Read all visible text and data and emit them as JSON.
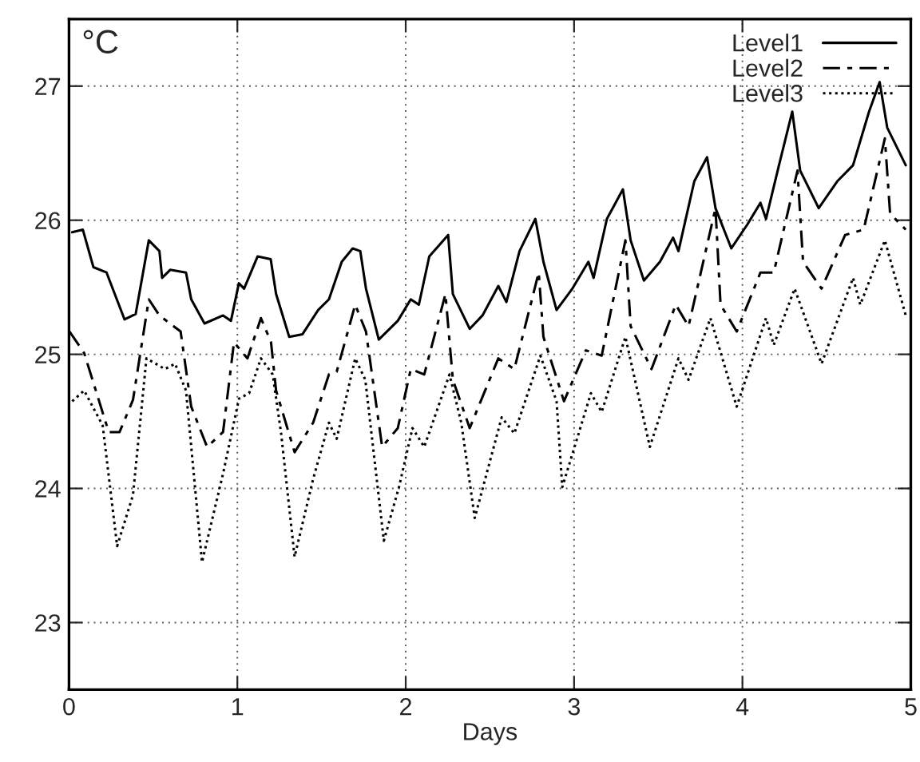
{
  "chart_data": {
    "type": "line",
    "xlabel": "Days",
    "annotations": [
      "°C"
    ],
    "xlim": [
      0,
      5
    ],
    "ylim": [
      22.5,
      27.5
    ],
    "xticks": [
      0,
      1,
      2,
      3,
      4,
      5
    ],
    "yticks": [
      23,
      24,
      25,
      26,
      27
    ],
    "grid": true,
    "legend": "top right",
    "marker": "none",
    "series": [
      {
        "name": "Level1",
        "color": "#000000",
        "line_style": "solid",
        "x": [
          0.019,
          0.082,
          0.145,
          0.223,
          0.33,
          0.396,
          0.474,
          0.537,
          0.553,
          0.601,
          0.695,
          0.726,
          0.805,
          0.915,
          0.962,
          1.009,
          1.04,
          1.12,
          1.198,
          1.23,
          1.308,
          1.387,
          1.48,
          1.544,
          1.62,
          1.685,
          1.73,
          1.764,
          1.84,
          1.953,
          2.03,
          2.078,
          2.14,
          2.252,
          2.28,
          2.38,
          2.456,
          2.55,
          2.598,
          2.676,
          2.77,
          2.818,
          2.896,
          2.99,
          3.085,
          3.116,
          3.195,
          3.29,
          3.336,
          3.415,
          3.51,
          3.588,
          3.62,
          3.714,
          3.79,
          3.84,
          3.934,
          4.03,
          4.107,
          4.14,
          4.217,
          4.296,
          4.343,
          4.453,
          4.563,
          4.657,
          4.752,
          4.815,
          4.86,
          4.97
        ],
        "values": [
          25.91,
          25.93,
          25.65,
          25.61,
          25.26,
          25.3,
          25.85,
          25.77,
          25.57,
          25.63,
          25.61,
          25.41,
          25.23,
          25.29,
          25.25,
          25.53,
          25.49,
          25.73,
          25.71,
          25.45,
          25.13,
          25.15,
          25.33,
          25.41,
          25.69,
          25.79,
          25.77,
          25.49,
          25.11,
          25.25,
          25.41,
          25.37,
          25.73,
          25.89,
          25.45,
          25.19,
          25.29,
          25.51,
          25.39,
          25.77,
          26.01,
          25.69,
          25.33,
          25.49,
          25.69,
          25.57,
          26.01,
          26.23,
          25.85,
          25.55,
          25.69,
          25.87,
          25.77,
          26.29,
          26.47,
          26.09,
          25.79,
          25.97,
          26.13,
          26.01,
          26.41,
          26.81,
          26.37,
          26.09,
          26.29,
          26.41,
          26.81,
          27.03,
          26.69,
          26.41
        ]
      },
      {
        "name": "Level2",
        "color": "#000000",
        "line_style": "dashed",
        "x": [
          0.003,
          0.09,
          0.236,
          0.3,
          0.38,
          0.474,
          0.537,
          0.663,
          0.726,
          0.82,
          0.915,
          0.98,
          1.06,
          1.14,
          1.2,
          1.23,
          1.34,
          1.45,
          1.544,
          1.59,
          1.7,
          1.764,
          1.86,
          1.953,
          2.03,
          2.11,
          2.236,
          2.28,
          2.38,
          2.55,
          2.645,
          2.79,
          2.818,
          2.94,
          3.07,
          3.164,
          3.305,
          3.336,
          3.46,
          3.604,
          3.68,
          3.84,
          3.87,
          3.966,
          4.107,
          4.186,
          4.327,
          4.36,
          4.47,
          4.61,
          4.72,
          4.846,
          4.877,
          4.97
        ],
        "values": [
          25.17,
          25.01,
          24.42,
          24.42,
          24.66,
          25.41,
          25.29,
          25.17,
          24.61,
          24.31,
          24.42,
          25.09,
          24.97,
          25.27,
          25.09,
          24.73,
          24.27,
          24.49,
          24.85,
          24.87,
          25.37,
          25.17,
          24.31,
          24.45,
          24.89,
          24.85,
          25.45,
          24.81,
          24.45,
          24.97,
          24.89,
          25.61,
          25.13,
          24.65,
          25.03,
          24.99,
          25.85,
          25.21,
          24.89,
          25.37,
          25.21,
          26.09,
          25.37,
          25.17,
          25.61,
          25.61,
          26.37,
          25.69,
          25.49,
          25.89,
          25.93,
          26.61,
          26.05,
          25.93
        ]
      },
      {
        "name": "Level3",
        "color": "#000000",
        "line_style": "dotted",
        "x": [
          0.019,
          0.09,
          0.2,
          0.286,
          0.38,
          0.46,
          0.57,
          0.63,
          0.695,
          0.79,
          0.915,
          1.01,
          1.07,
          1.14,
          1.21,
          1.26,
          1.34,
          1.45,
          1.544,
          1.59,
          1.7,
          1.76,
          1.87,
          1.96,
          2.04,
          2.11,
          2.26,
          2.33,
          2.41,
          2.57,
          2.645,
          2.8,
          2.896,
          2.93,
          3.1,
          3.164,
          3.305,
          3.45,
          3.62,
          3.68,
          3.81,
          3.966,
          4.14,
          4.186,
          4.31,
          4.47,
          4.657,
          4.7,
          4.846,
          4.97
        ],
        "values": [
          24.65,
          24.73,
          24.47,
          23.57,
          23.95,
          24.97,
          24.89,
          24.93,
          24.73,
          23.45,
          24.11,
          24.67,
          24.71,
          24.97,
          24.85,
          24.41,
          23.49,
          24.07,
          24.49,
          24.37,
          24.97,
          24.81,
          23.61,
          24.01,
          24.45,
          24.31,
          24.85,
          24.49,
          23.78,
          24.53,
          24.41,
          24.99,
          24.65,
          24.01,
          24.71,
          24.57,
          25.13,
          24.31,
          24.97,
          24.81,
          25.27,
          24.61,
          25.27,
          25.07,
          25.49,
          24.93,
          25.57,
          25.37,
          25.85,
          25.29
        ]
      }
    ]
  }
}
